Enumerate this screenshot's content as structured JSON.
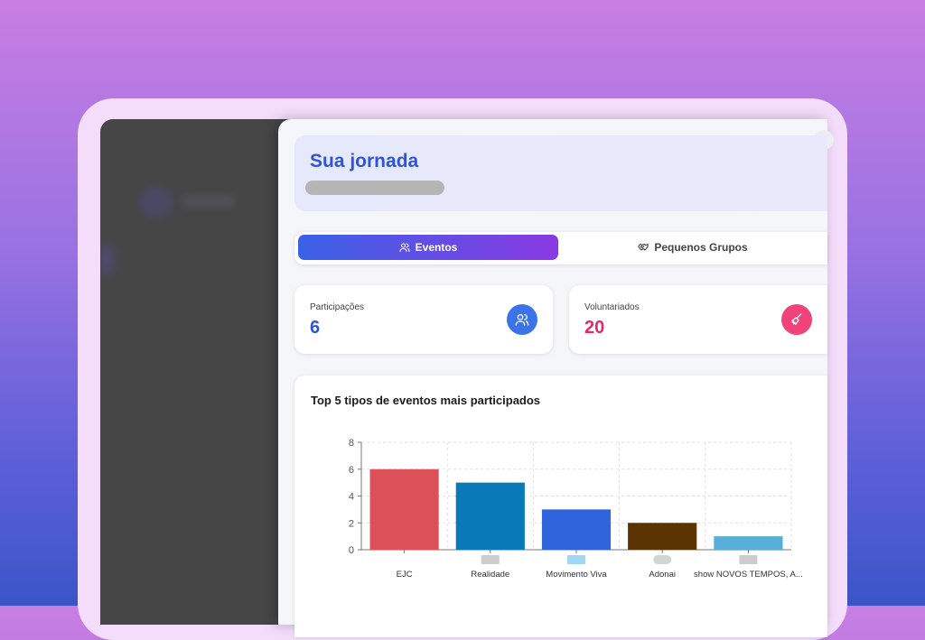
{
  "panel": {
    "title": "Sua jornada",
    "close_label": "×"
  },
  "tabs": [
    {
      "label": "Eventos",
      "icon": "users-icon",
      "active": true
    },
    {
      "label": "Pequenos Grupos",
      "icon": "handshake-icon",
      "active": false
    }
  ],
  "stats": {
    "participacoes": {
      "label": "Participações",
      "value": "6",
      "color": "#2f55d4",
      "icon_bg": "#3b73e8",
      "icon": "users-icon"
    },
    "voluntariados": {
      "label": "Voluntariados",
      "value": "20",
      "color": "#e02b6a",
      "icon_bg": "#ef4379",
      "icon": "broom-icon"
    }
  },
  "chart_data": {
    "type": "bar",
    "title": "Top 5 tipos de eventos mais participados",
    "categories": [
      "EJC",
      "Realidade",
      "Movimento Viva",
      "Adonai",
      "show NOVOS TEMPOS, A..."
    ],
    "category_logos": [
      "",
      "realidade-logo",
      "viva-logo",
      "adonai-logo",
      "novos-tempos-logo"
    ],
    "values": [
      6,
      5,
      3,
      2,
      1
    ],
    "colors": [
      "#dc5059",
      "#0a79b7",
      "#2f64dd",
      "#5b3403",
      "#58afd9"
    ],
    "yticks": [
      0,
      2,
      4,
      6,
      8
    ],
    "ylim": [
      0,
      8
    ],
    "grid": true
  }
}
